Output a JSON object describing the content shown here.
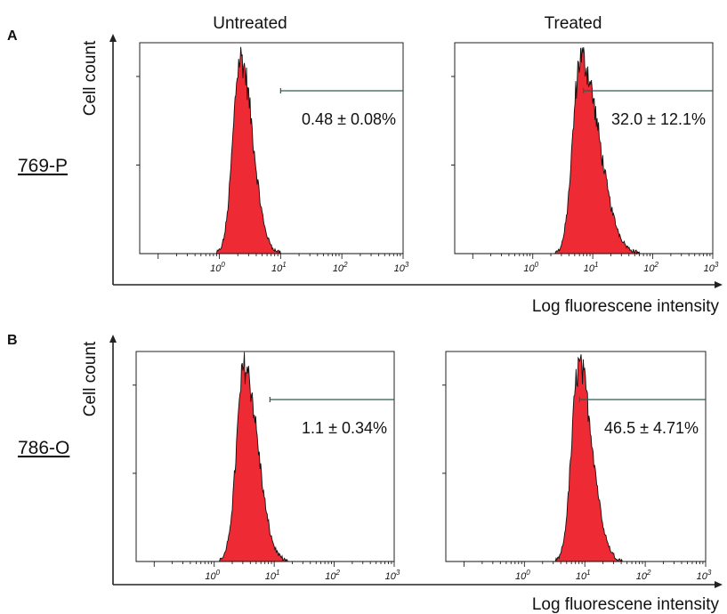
{
  "column_titles": [
    "Untreated",
    "Treated"
  ],
  "panel_letters": [
    "A",
    "B"
  ],
  "row_labels": [
    "769-P",
    "786-O"
  ],
  "ylabel": "Cell count",
  "xlabel": "Log fluorescene intensity",
  "colors": {
    "fill": "#ee2b34",
    "outline": "#111111",
    "gate": "#2c5a52",
    "frame": "#222222"
  },
  "chart_data": [
    {
      "type": "histogram",
      "panel": "A",
      "row_label": "769-P",
      "condition": "Untreated",
      "x_scale": "log",
      "xlim": [
        0.05,
        1000
      ],
      "x_ticks": [
        "10^0",
        "10^1",
        "10^2",
        "10^3"
      ],
      "peak_x": 2.2,
      "spread_log10": 0.12,
      "tail_log10": 0.2,
      "gate_start_x": 10,
      "gate_end_x": 1000,
      "annotation": "0.48 ± 0.08%",
      "annotation_parts": [
        "0.48",
        "0.08%"
      ]
    },
    {
      "type": "histogram",
      "panel": "A",
      "row_label": "769-P",
      "condition": "Treated",
      "x_scale": "log",
      "xlim": [
        0.05,
        1000
      ],
      "x_ticks": [
        "10^0",
        "10^1",
        "10^2",
        "10^3"
      ],
      "peak_x": 6.3,
      "spread_log10": 0.13,
      "tail_log10": 0.3,
      "gate_start_x": 7,
      "gate_end_x": 1000,
      "annotation": "32.0 ± 12.1%",
      "annotation_parts": [
        "32.0",
        "12.1%"
      ]
    },
    {
      "type": "histogram",
      "panel": "B",
      "row_label": "786-O",
      "condition": "Untreated",
      "x_scale": "log",
      "xlim": [
        0.05,
        1000
      ],
      "x_ticks": [
        "10^0",
        "10^1",
        "10^2",
        "10^3"
      ],
      "peak_x": 3.2,
      "spread_log10": 0.13,
      "tail_log10": 0.22,
      "gate_start_x": 8.5,
      "gate_end_x": 1000,
      "annotation": "1.1 ± 0.34%",
      "annotation_parts": [
        "1.1",
        "0.34%"
      ]
    },
    {
      "type": "histogram",
      "panel": "B",
      "row_label": "786-O",
      "condition": "Treated",
      "x_scale": "log",
      "xlim": [
        0.05,
        1000
      ],
      "x_ticks": [
        "10^0",
        "10^1",
        "10^2",
        "10^3"
      ],
      "peak_x": 8.0,
      "spread_log10": 0.12,
      "tail_log10": 0.22,
      "gate_start_x": 8.2,
      "gate_end_x": 1000,
      "annotation": "46.5 ± 4.71%",
      "annotation_parts": [
        "46.5",
        "4.71%"
      ]
    }
  ]
}
